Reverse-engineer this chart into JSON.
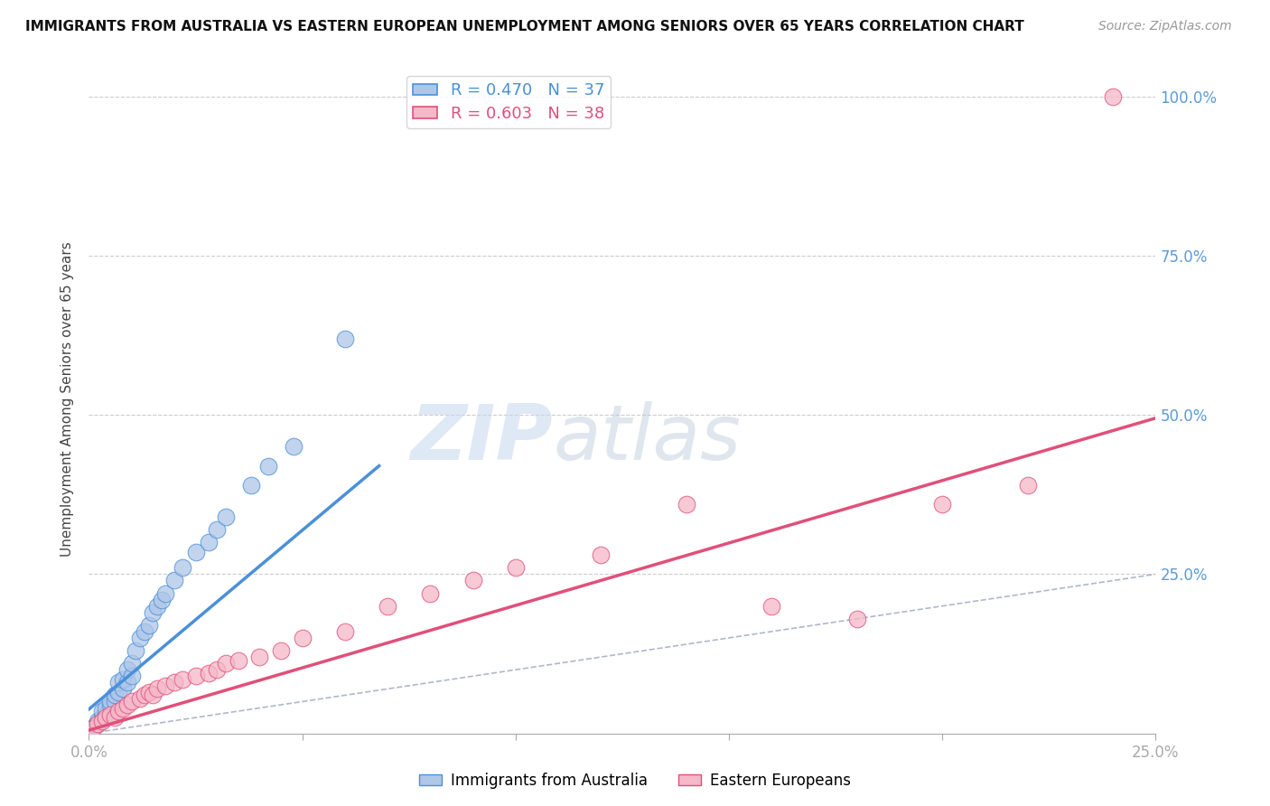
{
  "title": "IMMIGRANTS FROM AUSTRALIA VS EASTERN EUROPEAN UNEMPLOYMENT AMONG SENIORS OVER 65 YEARS CORRELATION CHART",
  "source": "Source: ZipAtlas.com",
  "ylabel": "Unemployment Among Seniors over 65 years",
  "xlim": [
    0.0,
    0.25
  ],
  "ylim": [
    0.0,
    1.05
  ],
  "x_ticks": [
    0.0,
    0.05,
    0.1,
    0.15,
    0.2,
    0.25
  ],
  "x_tick_labels": [
    "0.0%",
    "",
    "",
    "",
    "",
    "25.0%"
  ],
  "y_ticks": [
    0.0,
    0.25,
    0.5,
    0.75,
    1.0
  ],
  "y_tick_labels": [
    "",
    "25.0%",
    "50.0%",
    "75.0%",
    "100.0%"
  ],
  "legend_blue_R": "R = 0.470",
  "legend_blue_N": "N = 37",
  "legend_pink_R": "R = 0.603",
  "legend_pink_N": "N = 38",
  "watermark_zip": "ZIP",
  "watermark_atlas": "atlas",
  "blue_color": "#aec6e8",
  "blue_line_color": "#4a90d9",
  "pink_color": "#f5b8c8",
  "pink_line_color": "#e0507a",
  "diagonal_color": "#b0b8c8",
  "blue_scatter_x": [
    0.001,
    0.002,
    0.002,
    0.003,
    0.003,
    0.004,
    0.004,
    0.005,
    0.005,
    0.006,
    0.006,
    0.007,
    0.007,
    0.008,
    0.008,
    0.009,
    0.009,
    0.01,
    0.01,
    0.011,
    0.012,
    0.013,
    0.014,
    0.015,
    0.016,
    0.017,
    0.018,
    0.02,
    0.022,
    0.025,
    0.028,
    0.03,
    0.032,
    0.038,
    0.042,
    0.048,
    0.06
  ],
  "blue_scatter_y": [
    0.01,
    0.015,
    0.02,
    0.025,
    0.035,
    0.03,
    0.04,
    0.045,
    0.05,
    0.05,
    0.06,
    0.065,
    0.08,
    0.07,
    0.085,
    0.08,
    0.1,
    0.09,
    0.11,
    0.13,
    0.15,
    0.16,
    0.17,
    0.19,
    0.2,
    0.21,
    0.22,
    0.24,
    0.26,
    0.285,
    0.3,
    0.32,
    0.34,
    0.39,
    0.42,
    0.45,
    0.62
  ],
  "pink_scatter_x": [
    0.001,
    0.002,
    0.003,
    0.004,
    0.005,
    0.006,
    0.007,
    0.008,
    0.009,
    0.01,
    0.012,
    0.013,
    0.014,
    0.015,
    0.016,
    0.018,
    0.02,
    0.022,
    0.025,
    0.028,
    0.03,
    0.032,
    0.035,
    0.04,
    0.045,
    0.05,
    0.06,
    0.07,
    0.08,
    0.09,
    0.1,
    0.12,
    0.14,
    0.16,
    0.18,
    0.2,
    0.22,
    0.24
  ],
  "pink_scatter_y": [
    0.008,
    0.015,
    0.02,
    0.025,
    0.03,
    0.025,
    0.035,
    0.04,
    0.045,
    0.05,
    0.055,
    0.06,
    0.065,
    0.06,
    0.07,
    0.075,
    0.08,
    0.085,
    0.09,
    0.095,
    0.1,
    0.11,
    0.115,
    0.12,
    0.13,
    0.15,
    0.16,
    0.2,
    0.22,
    0.24,
    0.26,
    0.28,
    0.36,
    0.2,
    0.18,
    0.36,
    0.39,
    1.0
  ],
  "blue_line_x": [
    0.0,
    0.068
  ],
  "blue_line_y": [
    0.038,
    0.42
  ],
  "pink_line_x": [
    0.0,
    0.25
  ],
  "pink_line_y": [
    0.005,
    0.495
  ],
  "diag_line_x": [
    0.0,
    0.25
  ],
  "diag_line_y": [
    0.0,
    0.25
  ]
}
